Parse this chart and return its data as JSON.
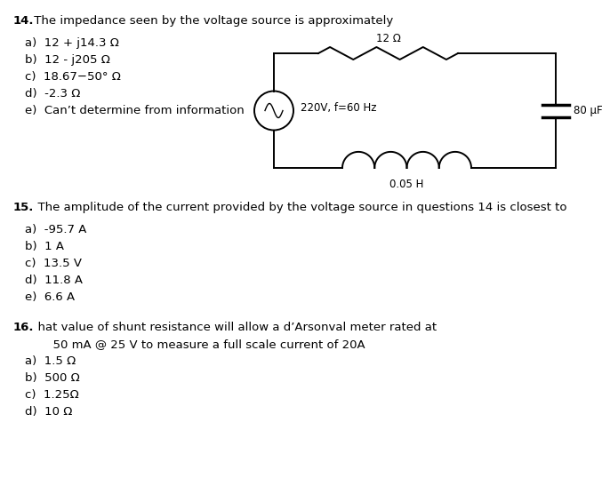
{
  "bg_color": "#ffffff",
  "q14_title": "14.  The impedance seen by the voltage source is approximately",
  "q14_options_raw": [
    [
      "a)  12 + j14.3 Ω",
      false
    ],
    [
      "b)  12 - j205 Ω",
      false
    ],
    [
      "c)  18.67−50° Ω",
      true
    ],
    [
      "d)  -2.3 Ω",
      false
    ],
    [
      "e)  Can’t determine from information",
      false
    ]
  ],
  "q15_title": "15.  The amplitude of the current provided by the voltage source in questions 14 is closest to",
  "q15_options": [
    "a)  -95.7 A",
    "b)  1 A",
    "c)  13.5 V",
    "d)  11.8 A",
    "e)  6.6 A"
  ],
  "q16_title_line1": "16.  What value of shunt resistance will allow a d’Arsonval meter rated at",
  "q16_title_line2": "      50 mA @ 25 V to measure a full scale current of 20A",
  "q16_options": [
    "a)  1.5 Ω",
    "b)  500 Ω",
    "c)  1.25Ω",
    "d)  10 Ω"
  ],
  "circuit_resistor_label": "12 Ω",
  "circuit_source_label": "220V, f=60 Hz",
  "circuit_inductor_label": "0.05 H",
  "circuit_capacitor_label": "80 μF",
  "text_color": "#000000",
  "title_fontsize": 9.5,
  "option_fontsize": 9.5,
  "circuit_label_fontsize": 8.5,
  "q14_bold_num": "14",
  "q15_bold_num": "15",
  "q16_bold_num": "16"
}
